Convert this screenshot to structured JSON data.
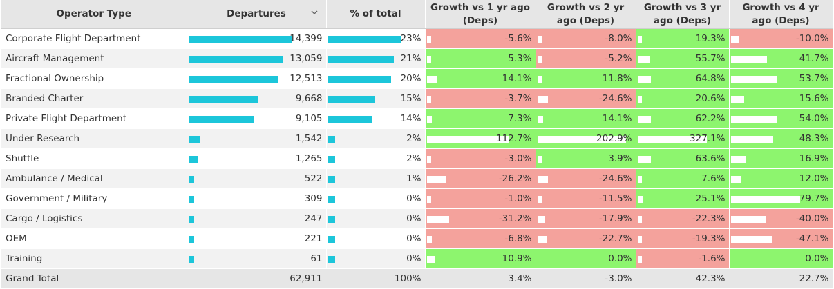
{
  "columns": {
    "operator_type": "Operator Type",
    "departures": "Departures",
    "pct_total": "% of total",
    "g1": "Growth vs 1 yr ago (Deps)",
    "g2": "Growth vs 2 yr ago (Deps)",
    "g3": "Growth vs 3 yr ago (Deps)",
    "g4": "Growth vs 4 yr ago (Deps)"
  },
  "sort_icon": "chevron-down-icon",
  "colors": {
    "bar": "#1cc6da",
    "positive": "#8df56e",
    "negative": "#f4a29c",
    "header": "#e6e6e6"
  },
  "rows": [
    {
      "operator": "Corporate Flight Department",
      "departures": "14,399",
      "pct": "23%",
      "g1": "-5.6%",
      "g2": "-8.0%",
      "g3": "19.3%",
      "g4": "-10.0%",
      "dep_value": 14399,
      "pct_value": 23,
      "g1_value": -5.6,
      "g2_value": -8.0,
      "g3_value": 19.3,
      "g4_value": -10.0
    },
    {
      "operator": "Aircraft Management",
      "departures": "13,059",
      "pct": "21%",
      "g1": "5.3%",
      "g2": "-5.2%",
      "g3": "55.7%",
      "g4": "41.7%",
      "dep_value": 13059,
      "pct_value": 21,
      "g1_value": 5.3,
      "g2_value": -5.2,
      "g3_value": 55.7,
      "g4_value": 41.7
    },
    {
      "operator": "Fractional Ownership",
      "departures": "12,513",
      "pct": "20%",
      "g1": "14.1%",
      "g2": "11.8%",
      "g3": "64.8%",
      "g4": "53.7%",
      "dep_value": 12513,
      "pct_value": 20,
      "g1_value": 14.1,
      "g2_value": 11.8,
      "g3_value": 64.8,
      "g4_value": 53.7
    },
    {
      "operator": "Branded Charter",
      "departures": "9,668",
      "pct": "15%",
      "g1": "-3.7%",
      "g2": "-24.6%",
      "g3": "20.6%",
      "g4": "15.6%",
      "dep_value": 9668,
      "pct_value": 15,
      "g1_value": -3.7,
      "g2_value": -24.6,
      "g3_value": 20.6,
      "g4_value": 15.6
    },
    {
      "operator": "Private Flight Department",
      "departures": "9,105",
      "pct": "14%",
      "g1": "7.3%",
      "g2": "14.1%",
      "g3": "62.2%",
      "g4": "54.0%",
      "dep_value": 9105,
      "pct_value": 14,
      "g1_value": 7.3,
      "g2_value": 14.1,
      "g3_value": 62.2,
      "g4_value": 54.0
    },
    {
      "operator": "Under Research",
      "departures": "1,542",
      "pct": "2%",
      "g1": "112.7%",
      "g2": "202.9%",
      "g3": "327.1%",
      "g4": "48.3%",
      "dep_value": 1542,
      "pct_value": 2,
      "g1_value": 112.7,
      "g2_value": 202.9,
      "g3_value": 327.1,
      "g4_value": 48.3
    },
    {
      "operator": "Shuttle",
      "departures": "1,265",
      "pct": "2%",
      "g1": "-3.0%",
      "g2": "3.9%",
      "g3": "63.6%",
      "g4": "16.9%",
      "dep_value": 1265,
      "pct_value": 2,
      "g1_value": -3.0,
      "g2_value": 3.9,
      "g3_value": 63.6,
      "g4_value": 16.9
    },
    {
      "operator": "Ambulance / Medical",
      "departures": "522",
      "pct": "1%",
      "g1": "-26.2%",
      "g2": "-24.6%",
      "g3": "7.6%",
      "g4": "12.0%",
      "dep_value": 522,
      "pct_value": 1,
      "g1_value": -26.2,
      "g2_value": -24.6,
      "g3_value": 7.6,
      "g4_value": 12.0
    },
    {
      "operator": "Government / Military",
      "departures": "309",
      "pct": "0%",
      "g1": "-1.0%",
      "g2": "-11.5%",
      "g3": "25.1%",
      "g4": "79.7%",
      "dep_value": 309,
      "pct_value": 0,
      "g1_value": -1.0,
      "g2_value": -11.5,
      "g3_value": 25.1,
      "g4_value": 79.7
    },
    {
      "operator": "Cargo / Logistics",
      "departures": "247",
      "pct": "0%",
      "g1": "-31.2%",
      "g2": "-17.9%",
      "g3": "-22.3%",
      "g4": "-40.0%",
      "dep_value": 247,
      "pct_value": 0,
      "g1_value": -31.2,
      "g2_value": -17.9,
      "g3_value": -22.3,
      "g4_value": -40.0
    },
    {
      "operator": "OEM",
      "departures": "221",
      "pct": "0%",
      "g1": "-6.8%",
      "g2": "-22.7%",
      "g3": "-19.3%",
      "g4": "-47.1%",
      "dep_value": 221,
      "pct_value": 0,
      "g1_value": -6.8,
      "g2_value": -22.7,
      "g3_value": -19.3,
      "g4_value": -47.1
    },
    {
      "operator": "Training",
      "departures": "61",
      "pct": "0%",
      "g1": "10.9%",
      "g2": "0.0%",
      "g3": "-1.6%",
      "g4": "0.0%",
      "dep_value": 61,
      "pct_value": 0,
      "g1_value": 10.9,
      "g2_value": 0.0,
      "g3_value": -1.6,
      "g4_value": 0.0
    }
  ],
  "total": {
    "operator": "Grand Total",
    "departures": "62,911",
    "pct": "100%",
    "g1": "3.4%",
    "g2": "-3.0%",
    "g3": "42.3%",
    "g4": "22.7%"
  }
}
